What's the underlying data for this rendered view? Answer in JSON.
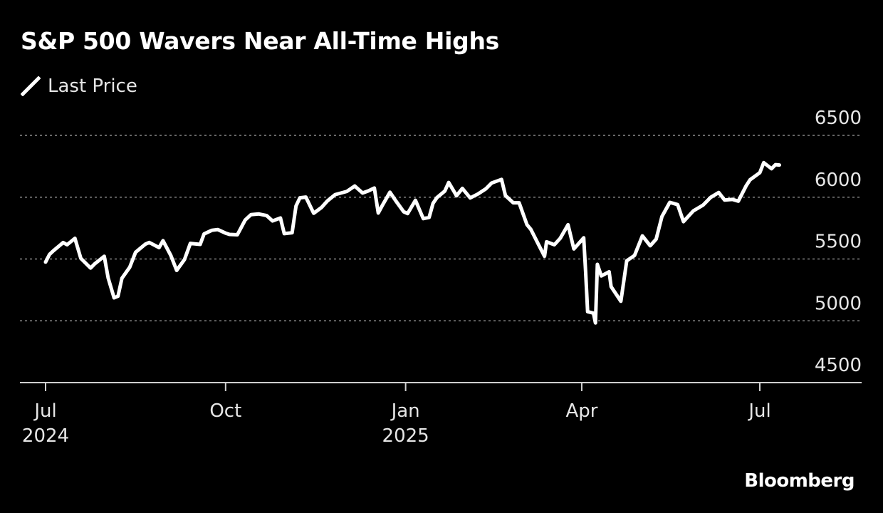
{
  "title": "S&P 500 Wavers Near All-Time Highs",
  "legend": {
    "label": "Last Price",
    "color": "#ffffff"
  },
  "brand": "Bloomberg",
  "colors": {
    "background": "#000000",
    "line": "#ffffff",
    "grid": "#8a8a8a",
    "text": "#e6e6e6"
  },
  "chart_data": {
    "type": "line",
    "title": "S&P 500 Wavers Near All-Time Highs",
    "xlabel": "",
    "ylabel": "",
    "ylim": [
      4500,
      6500
    ],
    "yticks": [
      4500,
      5000,
      5500,
      6000,
      6500
    ],
    "grid": true,
    "legend_position": "top-left",
    "x_range": [
      "2024-06-20",
      "2025-08-25"
    ],
    "x_ticks": [
      {
        "date": "2024-07-01",
        "label": "Jul",
        "sublabel": "2024"
      },
      {
        "date": "2024-10-01",
        "label": "Oct",
        "sublabel": ""
      },
      {
        "date": "2025-01-01",
        "label": "Jan",
        "sublabel": "2025"
      },
      {
        "date": "2025-04-01",
        "label": "Apr",
        "sublabel": ""
      },
      {
        "date": "2025-07-01",
        "label": "Jul",
        "sublabel": ""
      }
    ],
    "series": [
      {
        "name": "Last Price",
        "points": [
          [
            "2024-07-01",
            5475
          ],
          [
            "2024-07-03",
            5537
          ],
          [
            "2024-07-05",
            5567
          ],
          [
            "2024-07-10",
            5633
          ],
          [
            "2024-07-12",
            5615
          ],
          [
            "2024-07-16",
            5667
          ],
          [
            "2024-07-19",
            5505
          ],
          [
            "2024-07-24",
            5427
          ],
          [
            "2024-07-26",
            5459
          ],
          [
            "2024-07-31",
            5522
          ],
          [
            "2024-08-02",
            5346
          ],
          [
            "2024-08-05",
            5186
          ],
          [
            "2024-08-07",
            5199
          ],
          [
            "2024-08-09",
            5344
          ],
          [
            "2024-08-13",
            5434
          ],
          [
            "2024-08-16",
            5554
          ],
          [
            "2024-08-21",
            5620
          ],
          [
            "2024-08-23",
            5634
          ],
          [
            "2024-08-28",
            5592
          ],
          [
            "2024-08-30",
            5648
          ],
          [
            "2024-09-03",
            5528
          ],
          [
            "2024-09-06",
            5408
          ],
          [
            "2024-09-10",
            5496
          ],
          [
            "2024-09-13",
            5626
          ],
          [
            "2024-09-18",
            5618
          ],
          [
            "2024-09-20",
            5703
          ],
          [
            "2024-09-24",
            5732
          ],
          [
            "2024-09-27",
            5738
          ],
          [
            "2024-10-01",
            5709
          ],
          [
            "2024-10-03",
            5699
          ],
          [
            "2024-10-07",
            5696
          ],
          [
            "2024-10-11",
            5815
          ],
          [
            "2024-10-14",
            5859
          ],
          [
            "2024-10-18",
            5864
          ],
          [
            "2024-10-22",
            5851
          ],
          [
            "2024-10-25",
            5808
          ],
          [
            "2024-10-29",
            5832
          ],
          [
            "2024-10-31",
            5705
          ],
          [
            "2024-11-04",
            5712
          ],
          [
            "2024-11-06",
            5929
          ],
          [
            "2024-11-08",
            5995
          ],
          [
            "2024-11-11",
            6001
          ],
          [
            "2024-11-15",
            5870
          ],
          [
            "2024-11-19",
            5917
          ],
          [
            "2024-11-22",
            5969
          ],
          [
            "2024-11-26",
            6021
          ],
          [
            "2024-12-02",
            6047
          ],
          [
            "2024-12-06",
            6090
          ],
          [
            "2024-12-10",
            6034
          ],
          [
            "2024-12-13",
            6051
          ],
          [
            "2024-12-16",
            6074
          ],
          [
            "2024-12-18",
            5872
          ],
          [
            "2024-12-20",
            5930
          ],
          [
            "2024-12-24",
            6040
          ],
          [
            "2024-12-27",
            5970
          ],
          [
            "2024-12-31",
            5882
          ],
          [
            "2025-01-02",
            5868
          ],
          [
            "2025-01-06",
            5975
          ],
          [
            "2025-01-10",
            5827
          ],
          [
            "2025-01-13",
            5836
          ],
          [
            "2025-01-15",
            5950
          ],
          [
            "2025-01-17",
            5997
          ],
          [
            "2025-01-21",
            6049
          ],
          [
            "2025-01-23",
            6119
          ],
          [
            "2025-01-27",
            6012
          ],
          [
            "2025-01-30",
            6071
          ],
          [
            "2025-02-03",
            5994
          ],
          [
            "2025-02-07",
            6026
          ],
          [
            "2025-02-11",
            6068
          ],
          [
            "2025-02-14",
            6115
          ],
          [
            "2025-02-19",
            6144
          ],
          [
            "2025-02-21",
            6013
          ],
          [
            "2025-02-25",
            5955
          ],
          [
            "2025-02-28",
            5955
          ],
          [
            "2025-03-04",
            5778
          ],
          [
            "2025-03-06",
            5739
          ],
          [
            "2025-03-10",
            5614
          ],
          [
            "2025-03-13",
            5522
          ],
          [
            "2025-03-14",
            5639
          ],
          [
            "2025-03-18",
            5615
          ],
          [
            "2025-03-21",
            5667
          ],
          [
            "2025-03-25",
            5777
          ],
          [
            "2025-03-28",
            5581
          ],
          [
            "2025-04-02",
            5671
          ],
          [
            "2025-04-03",
            5397
          ],
          [
            "2025-04-04",
            5074
          ],
          [
            "2025-04-07",
            5062
          ],
          [
            "2025-04-08",
            4983
          ],
          [
            "2025-04-09",
            5457
          ],
          [
            "2025-04-11",
            5363
          ],
          [
            "2025-04-15",
            5397
          ],
          [
            "2025-04-16",
            5276
          ],
          [
            "2025-04-21",
            5158
          ],
          [
            "2025-04-24",
            5485
          ],
          [
            "2025-04-28",
            5529
          ],
          [
            "2025-05-02",
            5687
          ],
          [
            "2025-05-06",
            5607
          ],
          [
            "2025-05-09",
            5660
          ],
          [
            "2025-05-12",
            5844
          ],
          [
            "2025-05-16",
            5958
          ],
          [
            "2025-05-20",
            5940
          ],
          [
            "2025-05-23",
            5802
          ],
          [
            "2025-05-28",
            5889
          ],
          [
            "2025-06-02",
            5936
          ],
          [
            "2025-06-06",
            6000
          ],
          [
            "2025-06-10",
            6038
          ],
          [
            "2025-06-13",
            5977
          ],
          [
            "2025-06-17",
            5982
          ],
          [
            "2025-06-20",
            5968
          ],
          [
            "2025-06-24",
            6092
          ],
          [
            "2025-06-26",
            6141
          ],
          [
            "2025-07-01",
            6198
          ],
          [
            "2025-07-03",
            6279
          ],
          [
            "2025-07-07",
            6230
          ],
          [
            "2025-07-09",
            6263
          ],
          [
            "2025-07-11",
            6260
          ]
        ]
      }
    ],
    "x_tick_labels": [
      "Jul",
      "Oct",
      "Jan",
      "Apr",
      "Jul"
    ],
    "x_tick_sublabels": [
      "2024",
      "2025"
    ],
    "y_tick_labels": [
      "6500",
      "6000",
      "5500",
      "5000",
      "4500"
    ]
  }
}
